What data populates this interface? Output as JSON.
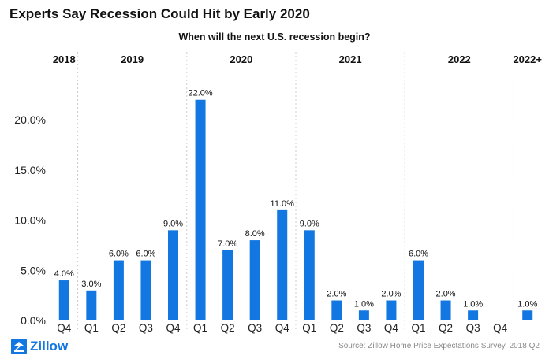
{
  "title": "Experts Say Recession Could Hit by Early 2020",
  "logo_text": "Zillow",
  "source": "Source: Zillow Home Price Expectations Survey, 2018 Q2",
  "colors": {
    "bar": "#1277e1",
    "text": "#111111",
    "grid": "#cccccc",
    "source": "#888888"
  },
  "chart_data": {
    "type": "bar",
    "title": "When will the next U.S. recession begin?",
    "categories": [
      "Q4",
      "Q1",
      "Q2",
      "Q3",
      "Q4",
      "Q1",
      "Q2",
      "Q3",
      "Q4",
      "Q1",
      "Q2",
      "Q3",
      "Q4",
      "Q1",
      "Q2",
      "Q3",
      "Q4",
      "2022+"
    ],
    "values": [
      4.0,
      3.0,
      6.0,
      6.0,
      9.0,
      22.0,
      7.0,
      8.0,
      11.0,
      9.0,
      2.0,
      1.0,
      2.0,
      6.0,
      2.0,
      1.0,
      null,
      1.0
    ],
    "data_labels": [
      "4.0%",
      "3.0%",
      "6.0%",
      "6.0%",
      "9.0%",
      "22.0%",
      "7.0%",
      "8.0%",
      "11.0%",
      "9.0%",
      "2.0%",
      "1.0%",
      "2.0%",
      "6.0%",
      "2.0%",
      "1.0%",
      "",
      "1.0%"
    ],
    "x_tick_labels": [
      "Q4",
      "Q1",
      "Q2",
      "Q3",
      "Q4",
      "Q1",
      "Q2",
      "Q3",
      "Q4",
      "Q1",
      "Q2",
      "Q3",
      "Q4",
      "Q1",
      "Q2",
      "Q3",
      "Q4",
      ""
    ],
    "year_groups": [
      {
        "label": "2018",
        "start": 0,
        "end": 0
      },
      {
        "label": "2019",
        "start": 1,
        "end": 4
      },
      {
        "label": "2020",
        "start": 5,
        "end": 8
      },
      {
        "label": "2021",
        "start": 9,
        "end": 12
      },
      {
        "label": "2022",
        "start": 13,
        "end": 16
      },
      {
        "label": "2022+",
        "start": 17,
        "end": 17
      }
    ],
    "y_ticks": [
      0,
      5,
      10,
      15,
      20
    ],
    "y_tick_labels": [
      "0.0%",
      "5.0%",
      "10.0%",
      "15.0%",
      "20.0%"
    ],
    "ylim": [
      0,
      23
    ],
    "xlabel": "",
    "ylabel": "",
    "grid": "vertical dotted separators between years",
    "legend": "none"
  }
}
